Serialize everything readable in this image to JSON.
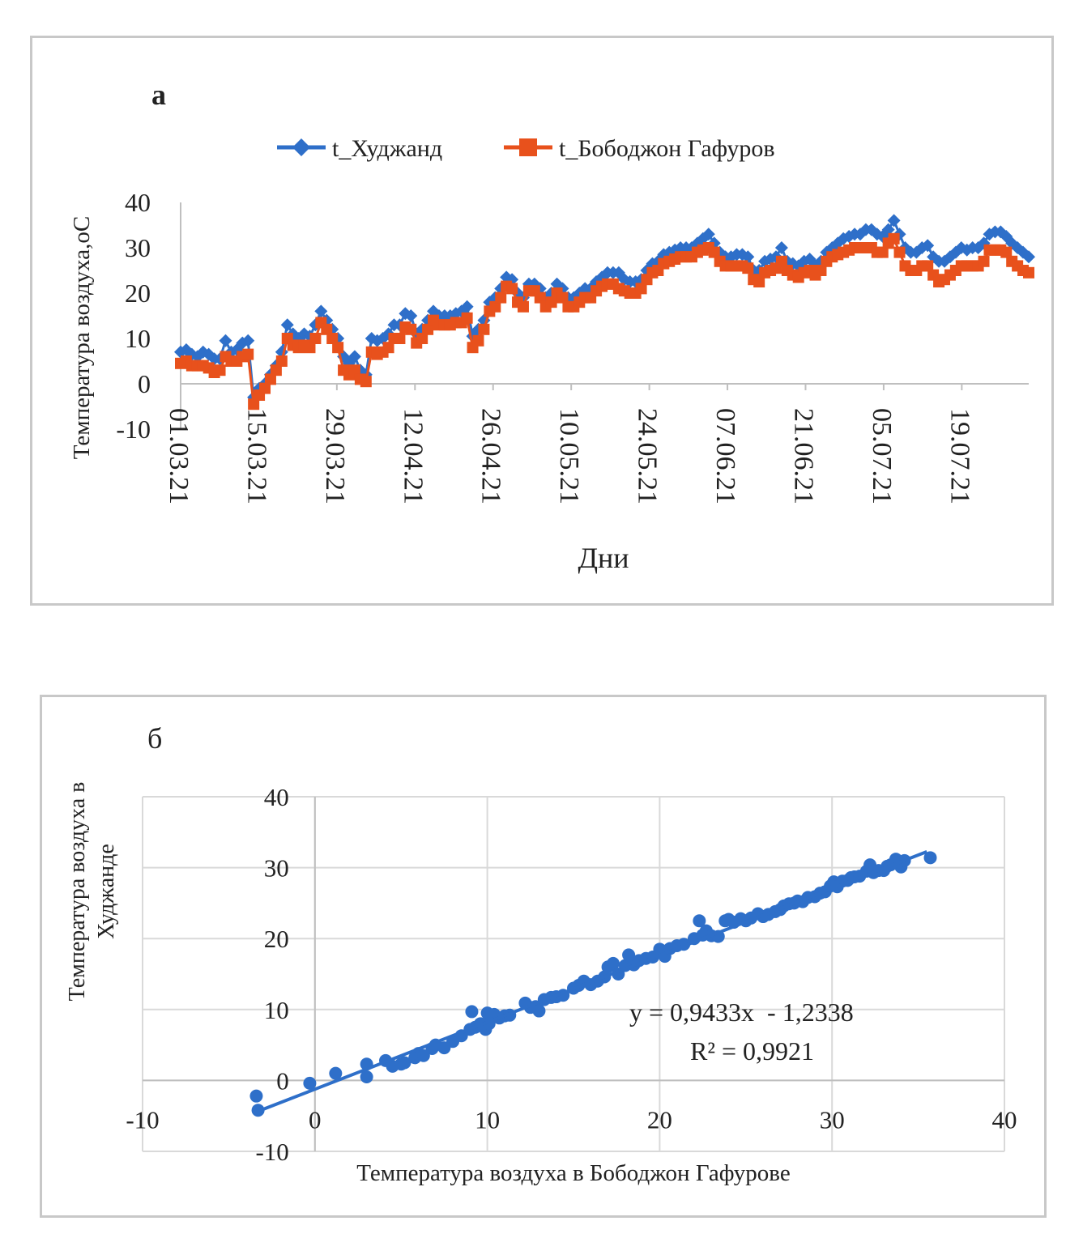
{
  "colors": {
    "series_khujand": "#2e6fc9",
    "series_bobojon": "#e8511c",
    "scatter": "#2e6fc9",
    "trendline": "#2e6fc9",
    "gridline": "#d9d9d9",
    "axis": "#bfbfbf",
    "text": "#222222"
  },
  "chart_data": [
    {
      "panel_label": "а",
      "type": "line",
      "xlabel": "Дни",
      "ylabel": "Температура воздуха,оС",
      "ylim": [
        -10,
        40
      ],
      "yticks": [
        -10,
        0,
        10,
        20,
        30,
        40
      ],
      "x_range": [
        "2021-03-01",
        "2021-07-31"
      ],
      "x_tick_labels": [
        "01.03.21",
        "15.03.21",
        "29.03.21",
        "12.04.21",
        "26.04.21",
        "10.05.21",
        "24.05.21",
        "07.06.21",
        "21.06.21",
        "05.07.21",
        "19.07.21"
      ],
      "grid": false,
      "legend_position": "top",
      "marker_khujand": "diamond",
      "marker_bobojon": "square",
      "series": [
        {
          "name": "t_Худжанд",
          "values": [
            7,
            7.5,
            6.5,
            6,
            7,
            6.5,
            5.5,
            5.5,
            9.5,
            7,
            7.5,
            9,
            9.5,
            -3,
            -1,
            0,
            2,
            4,
            7,
            13,
            11,
            10,
            11,
            10.5,
            13,
            16,
            14,
            12,
            10,
            6,
            4.5,
            6,
            3,
            2,
            10,
            9.5,
            10,
            11,
            13,
            13,
            15.5,
            15,
            11,
            12,
            14,
            16,
            15,
            15,
            15,
            15.5,
            16,
            17,
            10.5,
            12,
            14,
            18,
            19,
            21,
            23.5,
            23,
            20,
            19,
            22,
            22,
            21,
            19,
            20,
            22,
            21,
            19,
            19,
            20,
            21,
            21,
            22.5,
            23.5,
            24.5,
            24.5,
            24.5,
            23,
            22.5,
            22.5,
            23,
            25,
            26.5,
            27,
            28.5,
            29,
            29.5,
            30,
            30,
            30,
            31,
            32,
            33,
            31,
            29,
            28,
            28,
            28.5,
            28.5,
            28,
            25,
            25,
            27,
            27.5,
            28,
            30,
            27,
            26.5,
            26,
            27,
            27.5,
            26,
            27,
            29,
            30,
            31,
            32,
            32.5,
            33,
            33,
            34,
            34,
            33,
            32.5,
            34,
            36,
            33,
            30,
            29,
            29,
            30,
            30.5,
            28,
            27,
            27,
            28,
            29,
            30,
            29.5,
            30,
            30,
            31,
            33,
            33.5,
            33.5,
            32.5,
            31,
            30,
            29,
            28
          ]
        },
        {
          "name": "t_Бободжон Гафуров",
          "values": [
            4.5,
            5,
            4,
            4,
            4,
            3.5,
            2.5,
            3,
            6,
            5,
            5,
            6,
            6.5,
            -4.5,
            -2.5,
            -1,
            1,
            3,
            5,
            10,
            8.5,
            8,
            8.5,
            8,
            10,
            13.5,
            12,
            10,
            8,
            3,
            2,
            3,
            1,
            0.5,
            7,
            6.5,
            7,
            8,
            10,
            10,
            12.5,
            12,
            9,
            10,
            12,
            14,
            13,
            13,
            13,
            13.5,
            13.5,
            14.5,
            8,
            9.5,
            12,
            16,
            17,
            19,
            21.5,
            21,
            18,
            17,
            20.5,
            20.5,
            19,
            17,
            18,
            20,
            19,
            17,
            17,
            18,
            19,
            19,
            20.5,
            21.5,
            22,
            22,
            21,
            20.5,
            20,
            20,
            21,
            23,
            24.5,
            25,
            26.5,
            27,
            27.5,
            28,
            28,
            28,
            29,
            29.5,
            30,
            29,
            27,
            26,
            26,
            26,
            26,
            25.5,
            23,
            22.5,
            24.5,
            25,
            25.5,
            27,
            25,
            24,
            23.5,
            24.5,
            25,
            24,
            25,
            27,
            28,
            28.5,
            29,
            29.5,
            30,
            30,
            30,
            30,
            29,
            29,
            31,
            32,
            29,
            26,
            25,
            25,
            26,
            26,
            24,
            22.5,
            23,
            24,
            25,
            26,
            26,
            26,
            26,
            27,
            29.5,
            29.5,
            29.5,
            29,
            27,
            26,
            25,
            24.5
          ]
        }
      ]
    },
    {
      "panel_label": "б",
      "type": "scatter",
      "xlabel": "Температура воздуха в Бободжон Гафурове",
      "ylabel": "Температура воздуха в Худжанде",
      "xlim": [
        -10,
        40
      ],
      "ylim": [
        -10,
        40
      ],
      "xticks": [
        -10,
        0,
        10,
        20,
        30,
        40
      ],
      "yticks": [
        -10,
        0,
        10,
        20,
        30,
        40
      ],
      "grid": true,
      "trendline": {
        "slope": 0.9433,
        "intercept": -1.2338,
        "x_range": [
          -3,
          35.5
        ]
      },
      "equation_text": "y = 0,9433x  - 1,2338",
      "r2_text": "R² = 0,9921",
      "x": [
        -3.4,
        -3.3,
        -0.3,
        1.2,
        3,
        3,
        4.1,
        4.5,
        5,
        5.2,
        5.8,
        6,
        6.3,
        6.8,
        7,
        7.5,
        8,
        8.5,
        9,
        9.1,
        9.3,
        9.6,
        9.9,
        10,
        10.1,
        10.4,
        10.7,
        11,
        11.3,
        12.2,
        12.5,
        12.8,
        13,
        13.3,
        13.7,
        14,
        14.4,
        15,
        15.3,
        15.6,
        16,
        16.4,
        16.8,
        17,
        17.3,
        17.6,
        18,
        18.2,
        18.5,
        18.8,
        19.2,
        19.6,
        20,
        20.3,
        20.6,
        21,
        21.4,
        22,
        22.3,
        22.5,
        22.7,
        23,
        23.4,
        23.8,
        24,
        24.3,
        24.7,
        25,
        25.3,
        25.7,
        26,
        26.3,
        26.7,
        27,
        27.2,
        27.5,
        27.8,
        28,
        28.3,
        28.6,
        29,
        29.3,
        29.6,
        29.9,
        30.1,
        30.3,
        30.6,
        30.9,
        31.1,
        31.3,
        31.6,
        32,
        32.2,
        32.4,
        32.7,
        33,
        33.2,
        33.4,
        33.7,
        34,
        34.2,
        35.7
      ],
      "y": [
        -2.2,
        -4.2,
        -0.4,
        1,
        0.5,
        2.3,
        2.8,
        2,
        2.3,
        2.5,
        3.2,
        3.8,
        3.5,
        4.5,
        5,
        4.6,
        5.5,
        6.3,
        7.2,
        9.7,
        7.5,
        8,
        7.2,
        9.5,
        8,
        9.3,
        8.8,
        9.1,
        9.2,
        10.9,
        10.3,
        10.4,
        9.8,
        11.4,
        11.7,
        11.8,
        12,
        13,
        13.4,
        14,
        13.5,
        14,
        14.6,
        16,
        16.5,
        15,
        16.2,
        17.7,
        16.3,
        16.9,
        17.2,
        17.4,
        18.5,
        17.5,
        18.6,
        19,
        19.2,
        20,
        22.5,
        20.5,
        21.1,
        20.4,
        20.3,
        22.5,
        22.7,
        22.3,
        22.8,
        22.5,
        22.9,
        23.5,
        23.1,
        23.4,
        23.8,
        24.1,
        24.6,
        24.9,
        25,
        25.3,
        25.2,
        25.8,
        25.9,
        26.4,
        26.6,
        27.4,
        28,
        27.3,
        28.1,
        28.2,
        28.6,
        28.7,
        28.8,
        29.5,
        30.4,
        29.3,
        29.6,
        29.6,
        30.2,
        30.4,
        31.2,
        30.1,
        31,
        31.4
      ]
    }
  ]
}
